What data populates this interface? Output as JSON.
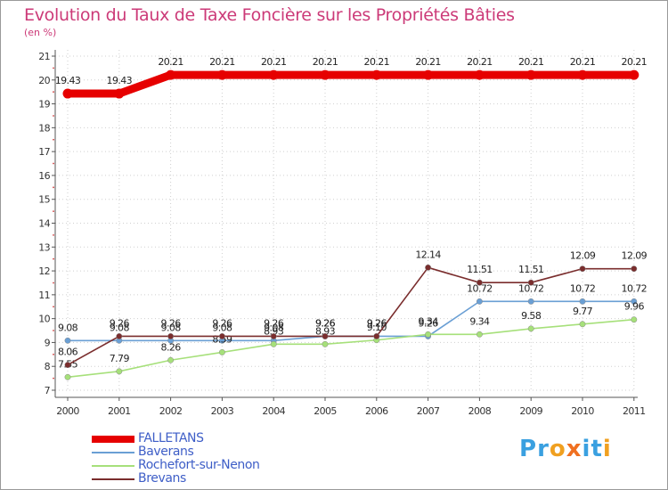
{
  "chart_data": {
    "type": "line",
    "title": "Evolution du Taux de Taxe Foncière sur les Propriétés Bâties",
    "subtitle": "(en %)",
    "xlabel": "",
    "ylabel": "(en %)",
    "ylim": [
      7,
      21
    ],
    "yticks": [
      "7",
      "8",
      "9",
      "10",
      "11",
      "12",
      "13",
      "14",
      "15",
      "16",
      "17",
      "18",
      "19",
      "20",
      "21"
    ],
    "categories": [
      "2000",
      "2001",
      "2002",
      "2003",
      "2004",
      "2005",
      "2006",
      "2007",
      "2008",
      "2009",
      "2010",
      "2011"
    ],
    "series": [
      {
        "name": "FALLETANS",
        "color": "#e60000",
        "values": [
          19.43,
          19.43,
          20.21,
          20.21,
          20.21,
          20.21,
          20.21,
          20.21,
          20.21,
          20.21,
          20.21,
          20.21
        ],
        "labels": [
          "19.43",
          "19.43",
          "20.21",
          "20.21",
          "20.21",
          "20.21",
          "20.21",
          "20.21",
          "20.21",
          "20.21",
          "20.21",
          "20.21"
        ]
      },
      {
        "name": "Baverans",
        "color": "#6a9fd4",
        "values": [
          9.08,
          9.08,
          9.08,
          9.08,
          9.08,
          9.26,
          9.26,
          9.26,
          10.72,
          10.72,
          10.72,
          10.72
        ],
        "labels": [
          "9.08",
          "9.08",
          "9.08",
          "9.08",
          "9.08",
          "9.26",
          "9.26",
          "9.26",
          "10.72",
          "10.72",
          "10.72",
          "10.72"
        ]
      },
      {
        "name": "Rochefort-sur-Nenon",
        "color": "#a6e07a",
        "values": [
          7.55,
          7.79,
          8.26,
          8.59,
          8.93,
          8.93,
          9.1,
          9.34,
          9.34,
          9.58,
          9.77,
          9.96
        ],
        "labels": [
          "7.55",
          "7.79",
          "8.26",
          "8.59",
          "8.93",
          "8.93",
          "9.10",
          "9.34",
          "9.34",
          "9.58",
          "9.77",
          "9.96"
        ]
      },
      {
        "name": "Brevans",
        "color": "#7a2d2d",
        "values": [
          8.06,
          9.26,
          9.26,
          9.26,
          9.26,
          9.26,
          9.26,
          12.14,
          11.51,
          11.51,
          12.09,
          12.09
        ],
        "labels": [
          "8.06",
          "9.26",
          "9.26",
          "9.26",
          "9.26",
          "9.26",
          "9.26",
          "12.14",
          "11.51",
          "11.51",
          "12.09",
          "12.09"
        ]
      }
    ]
  },
  "legend": {
    "items": [
      "FALLETANS",
      "Baverans",
      "Rochefort-sur-Nenon",
      "Brevans"
    ]
  },
  "logo": {
    "text": "Proxiti",
    "letters": [
      "P",
      "r",
      "o",
      "x",
      "i",
      "t",
      "i"
    ],
    "colors": [
      "#3aa0e0",
      "#3aa0e0",
      "#f0a020",
      "#f07020",
      "#3aa0e0",
      "#3aa0e0",
      "#f0a020"
    ]
  }
}
